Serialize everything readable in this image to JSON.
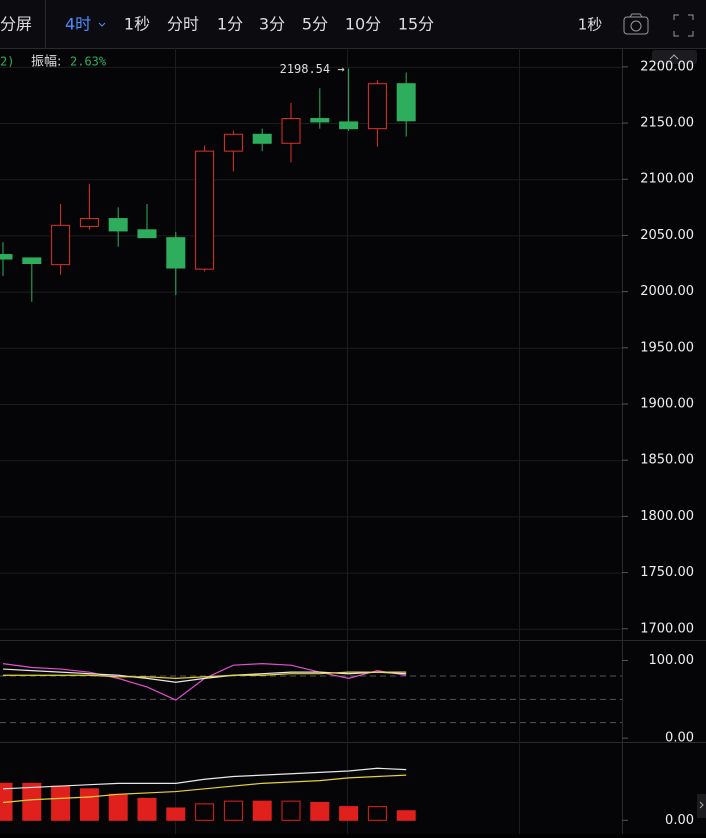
{
  "toolbar": {
    "split": "分屏",
    "active": "4时",
    "periods": [
      "1秒",
      "分时",
      "1分",
      "3分",
      "5分",
      "10分",
      "15分"
    ],
    "right": "1秒"
  },
  "info": {
    "prefix": "2)",
    "label": "振幅:",
    "value": "2.63%"
  },
  "chart_data": [
    {
      "type": "candlestick",
      "annotation": "2198.54 →",
      "open": [
        2033,
        2030,
        2024,
        2058,
        2065,
        2055,
        2048,
        2020,
        2125,
        2140,
        2132,
        2154,
        2151,
        2145,
        2185
      ],
      "high": [
        2044,
        2030,
        2078,
        2096,
        2075,
        2078,
        2053,
        2130,
        2143,
        2145,
        2168,
        2181,
        2198.54,
        2188,
        2195
      ],
      "low": [
        2014,
        1991,
        2015,
        2055,
        2040,
        2048,
        1997,
        2018,
        2107,
        2125,
        2115,
        2145,
        2143,
        2129,
        2138
      ],
      "close": [
        2029,
        2025,
        2059,
        2065,
        2054,
        2048,
        2021,
        2125,
        2140,
        2132,
        2154,
        2151,
        2145,
        2185,
        2152
      ],
      "up_color": "#e0302c",
      "down_color": "#2eae5c",
      "ylim": [
        1690,
        2215
      ],
      "yticks": [
        {
          "value": 2200,
          "label": "2200.00"
        },
        {
          "value": 2150,
          "label": "2150.00"
        },
        {
          "value": 2100,
          "label": "2100.00"
        },
        {
          "value": 2050,
          "label": "2050.00"
        },
        {
          "value": 2000,
          "label": "2000.00"
        },
        {
          "value": 1950,
          "label": "1950.00"
        },
        {
          "value": 1900,
          "label": "1900.00"
        },
        {
          "value": 1850,
          "label": "1850.00"
        },
        {
          "value": 1800,
          "label": "1800.00"
        },
        {
          "value": 1750,
          "label": "1750.00"
        },
        {
          "value": 1700,
          "label": "1700.00"
        }
      ],
      "grid": true
    },
    {
      "type": "line",
      "ylim": [
        -5,
        120
      ],
      "yticks": [
        {
          "value": 100,
          "label": "100.00"
        },
        {
          "value": 0,
          "label": "0.00"
        }
      ],
      "reference_lines": [
        80,
        50,
        20
      ],
      "series": [
        {
          "color": "#e04fd0",
          "values": [
            96,
            91,
            89,
            85,
            77,
            66,
            49,
            77,
            94,
            96,
            94,
            85,
            77,
            87,
            81
          ]
        },
        {
          "color": "#e8e8e8",
          "values": [
            89,
            87,
            85,
            83,
            81,
            77,
            72,
            77,
            81,
            83,
            85,
            85,
            83,
            85,
            83
          ]
        },
        {
          "color": "#e6d33a",
          "values": [
            81,
            81,
            81,
            81,
            79,
            79,
            77,
            79,
            81,
            81,
            83,
            83,
            85,
            85,
            85
          ]
        }
      ]
    },
    {
      "type": "bar",
      "ylim": [
        -10,
        55
      ],
      "yticks": [
        {
          "value": 0,
          "label": "0.00"
        }
      ],
      "color": "#e0201c",
      "values": [
        27,
        27,
        25,
        23,
        19,
        16,
        9,
        12,
        14,
        14,
        14,
        13,
        10,
        10,
        7
      ],
      "filled": [
        true,
        true,
        true,
        true,
        true,
        true,
        true,
        false,
        false,
        true,
        false,
        true,
        true,
        false,
        true
      ],
      "series": [
        {
          "color": "#e8e8e8",
          "values": [
            23,
            24,
            25,
            26,
            27,
            27,
            27,
            30,
            32,
            33,
            34,
            35,
            36,
            38,
            37
          ]
        },
        {
          "color": "#e6d33a",
          "values": [
            13,
            15,
            16,
            17,
            19,
            20,
            21,
            23,
            25,
            27,
            28,
            29,
            31,
            32,
            33
          ]
        }
      ]
    }
  ]
}
